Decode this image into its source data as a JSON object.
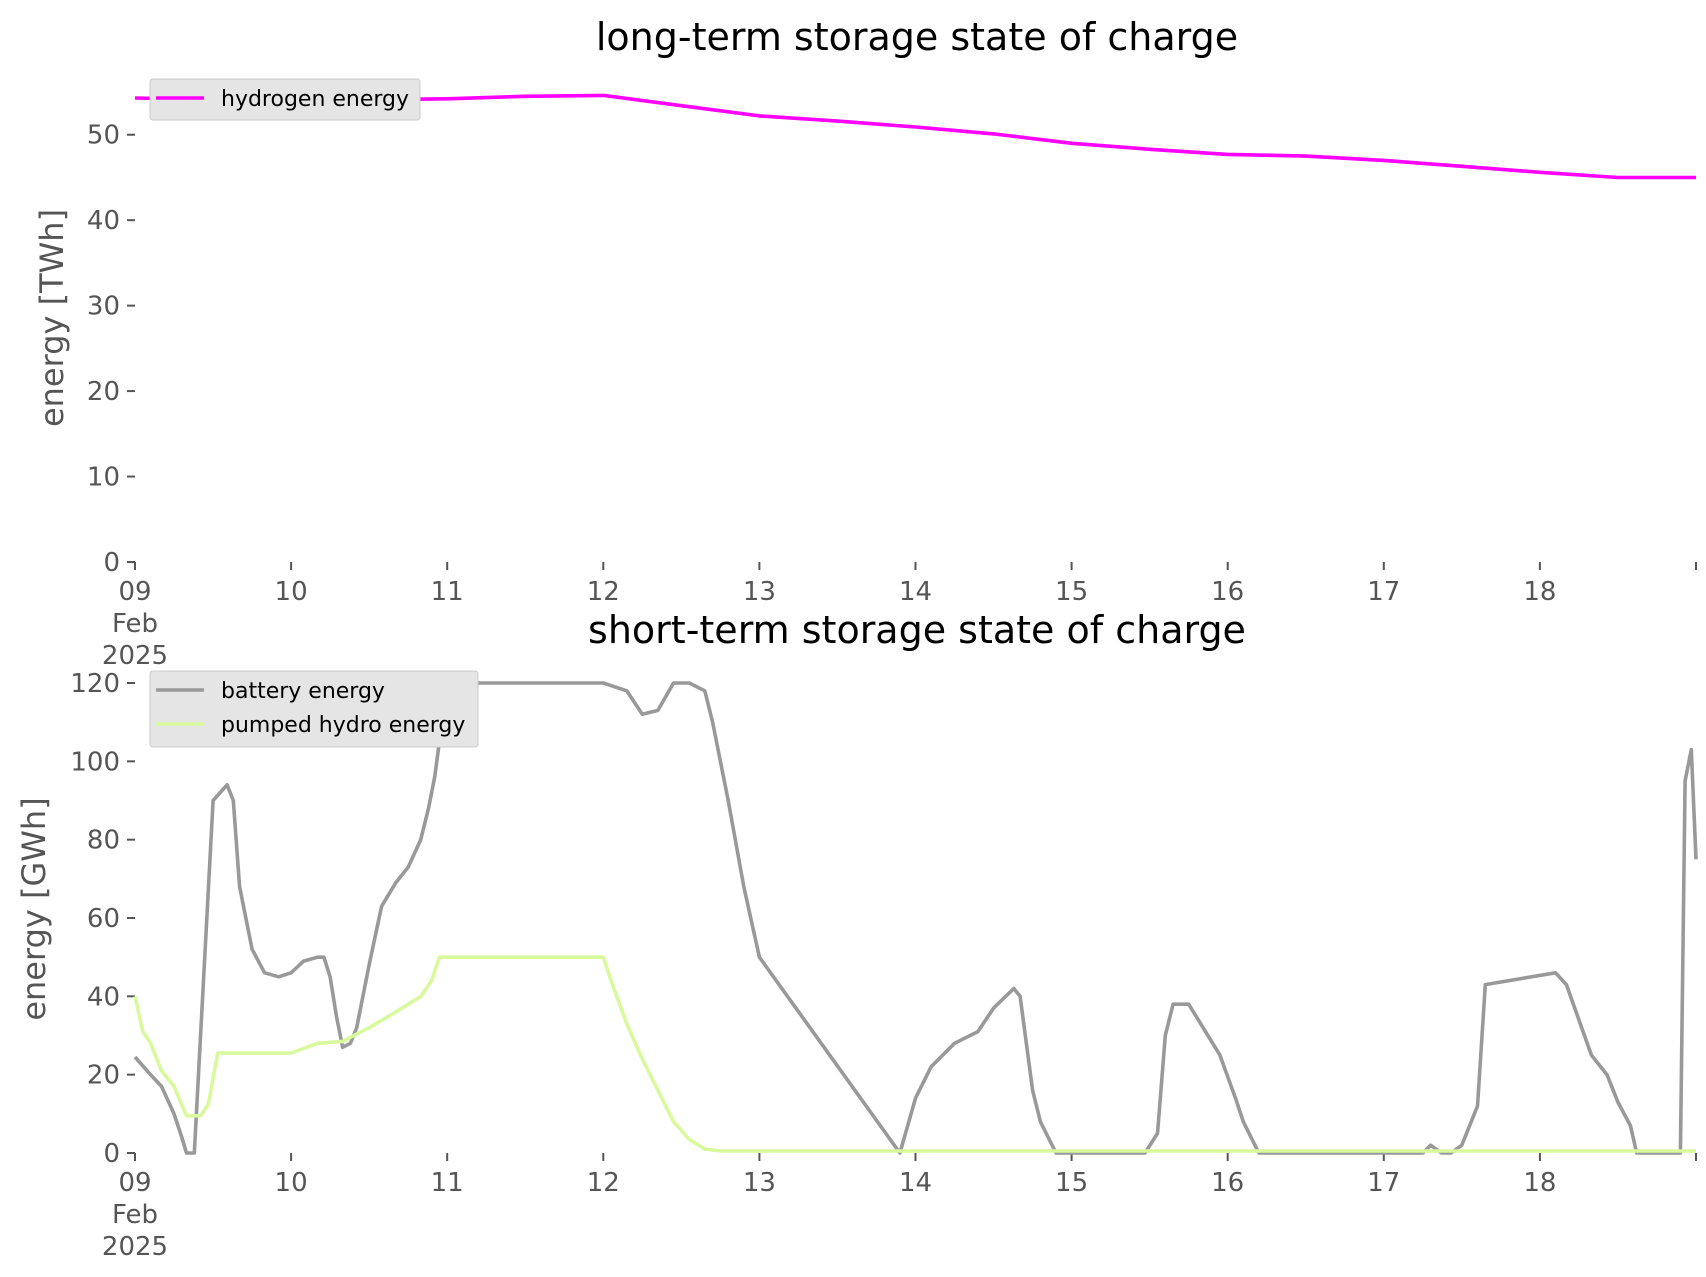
{
  "chart_data": [
    {
      "type": "line",
      "title": "long-term storage state of charge",
      "ylabel": "energy [TWh]",
      "xlabel": "",
      "ylim": [
        0,
        55
      ],
      "yticks": [
        0,
        10,
        20,
        30,
        40,
        50
      ],
      "xlim": [
        0,
        10
      ],
      "xticks": [
        {
          "x": 0,
          "label": [
            "09",
            "Feb",
            "2025"
          ]
        },
        {
          "x": 1,
          "label": [
            "10"
          ]
        },
        {
          "x": 2,
          "label": [
            "11"
          ]
        },
        {
          "x": 3,
          "label": [
            "12"
          ]
        },
        {
          "x": 4,
          "label": [
            "13"
          ]
        },
        {
          "x": 5,
          "label": [
            "14"
          ]
        },
        {
          "x": 6,
          "label": [
            "15"
          ]
        },
        {
          "x": 7,
          "label": [
            "16"
          ]
        },
        {
          "x": 8,
          "label": [
            "17"
          ]
        },
        {
          "x": 9,
          "label": [
            "18"
          ]
        }
      ],
      "grid": false,
      "legend_position": "top-left",
      "series": [
        {
          "name": "hydrogen energy",
          "color": "#ff00ff",
          "x": [
            0,
            0.5,
            1.0,
            1.5,
            2.0,
            2.5,
            3.0,
            3.5,
            4.0,
            4.5,
            5.0,
            5.5,
            6.0,
            6.5,
            7.0,
            7.5,
            8.0,
            8.5,
            9.0,
            9.5,
            10.0
          ],
          "y": [
            54.3,
            54.1,
            54.0,
            54.1,
            54.2,
            54.5,
            54.6,
            53.4,
            52.2,
            51.6,
            50.9,
            50.1,
            49.0,
            48.3,
            47.7,
            47.5,
            47.0,
            46.3,
            45.6,
            45.0,
            45.0
          ]
        }
      ]
    },
    {
      "type": "line",
      "title": "short-term storage state of charge",
      "ylabel": "energy [GWh]",
      "xlabel": "",
      "ylim": [
        0,
        120
      ],
      "yticks": [
        0,
        20,
        40,
        60,
        80,
        100,
        120
      ],
      "xlim": [
        0,
        10
      ],
      "xticks": [
        {
          "x": 0,
          "label": [
            "09",
            "Feb",
            "2025"
          ]
        },
        {
          "x": 1,
          "label": [
            "10"
          ]
        },
        {
          "x": 2,
          "label": [
            "11"
          ]
        },
        {
          "x": 3,
          "label": [
            "12"
          ]
        },
        {
          "x": 4,
          "label": [
            "13"
          ]
        },
        {
          "x": 5,
          "label": [
            "14"
          ]
        },
        {
          "x": 6,
          "label": [
            "15"
          ]
        },
        {
          "x": 7,
          "label": [
            "16"
          ]
        },
        {
          "x": 8,
          "label": [
            "17"
          ]
        },
        {
          "x": 9,
          "label": [
            "18"
          ]
        }
      ],
      "grid": false,
      "legend_position": "top-left",
      "series": [
        {
          "name": "battery energy",
          "color": "#999999",
          "x": [
            0,
            0.1,
            0.17,
            0.25,
            0.3,
            0.33,
            0.38,
            0.5,
            0.59,
            0.63,
            0.67,
            0.75,
            0.83,
            0.92,
            1.0,
            1.08,
            1.17,
            1.21,
            1.25,
            1.29,
            1.33,
            1.38,
            1.42,
            1.5,
            1.58,
            1.67,
            1.75,
            1.83,
            1.88,
            1.92,
            2.0,
            3.0,
            3.15,
            3.25,
            3.35,
            3.45,
            3.55,
            3.65,
            3.7,
            3.8,
            3.9,
            4.0,
            4.9,
            5.0,
            5.1,
            5.25,
            5.4,
            5.5,
            5.63,
            5.67,
            5.75,
            5.8,
            5.9,
            6.4,
            6.47,
            6.55,
            6.6,
            6.65,
            6.75,
            6.95,
            7.05,
            7.1,
            7.2,
            8.25,
            8.3,
            8.37,
            8.43,
            8.5,
            8.6,
            8.65,
            9.1,
            9.17,
            9.33,
            9.43,
            9.5,
            9.58,
            9.62,
            9.7,
            9.78,
            9.85,
            9.9,
            9.93,
            9.97,
            10.0
          ],
          "y": [
            24.5,
            20,
            17,
            10,
            4,
            0,
            0,
            90,
            94,
            90,
            68,
            52,
            46,
            45,
            46,
            49,
            50,
            50,
            45,
            35,
            27,
            28,
            32,
            48,
            63,
            69,
            73,
            80,
            88,
            96,
            120,
            120,
            118,
            112,
            113,
            120,
            120,
            118,
            110,
            90,
            68,
            50,
            0,
            14,
            22,
            28,
            31,
            37,
            42,
            40,
            16,
            8,
            0,
            0,
            0,
            5,
            30,
            38,
            38,
            25,
            14,
            8,
            0,
            0,
            2,
            0,
            0,
            2,
            12,
            43,
            46,
            43,
            25,
            20,
            13,
            7,
            0,
            0,
            0,
            0,
            0,
            95,
            103,
            75
          ]
        },
        {
          "name": "pumped hydro energy",
          "color": "#d9f99d",
          "x": [
            0,
            0.05,
            0.1,
            0.17,
            0.25,
            0.33,
            0.42,
            0.47,
            0.53,
            0.57,
            1.0,
            1.17,
            1.33,
            1.5,
            1.67,
            1.83,
            1.9,
            1.95,
            2.0,
            3.0,
            3.05,
            3.15,
            3.25,
            3.35,
            3.45,
            3.55,
            3.65,
            3.75,
            3.8,
            3.85,
            3.9,
            10.0
          ],
          "y": [
            40,
            31,
            28,
            21,
            17,
            9.5,
            9.5,
            12.5,
            25.5,
            25.5,
            25.5,
            28,
            28.5,
            32,
            36,
            40,
            44,
            50,
            50,
            50,
            44,
            33,
            24,
            16,
            8,
            3.5,
            1,
            0.5,
            0.5,
            0.5,
            0.5,
            0.5
          ]
        }
      ]
    }
  ]
}
